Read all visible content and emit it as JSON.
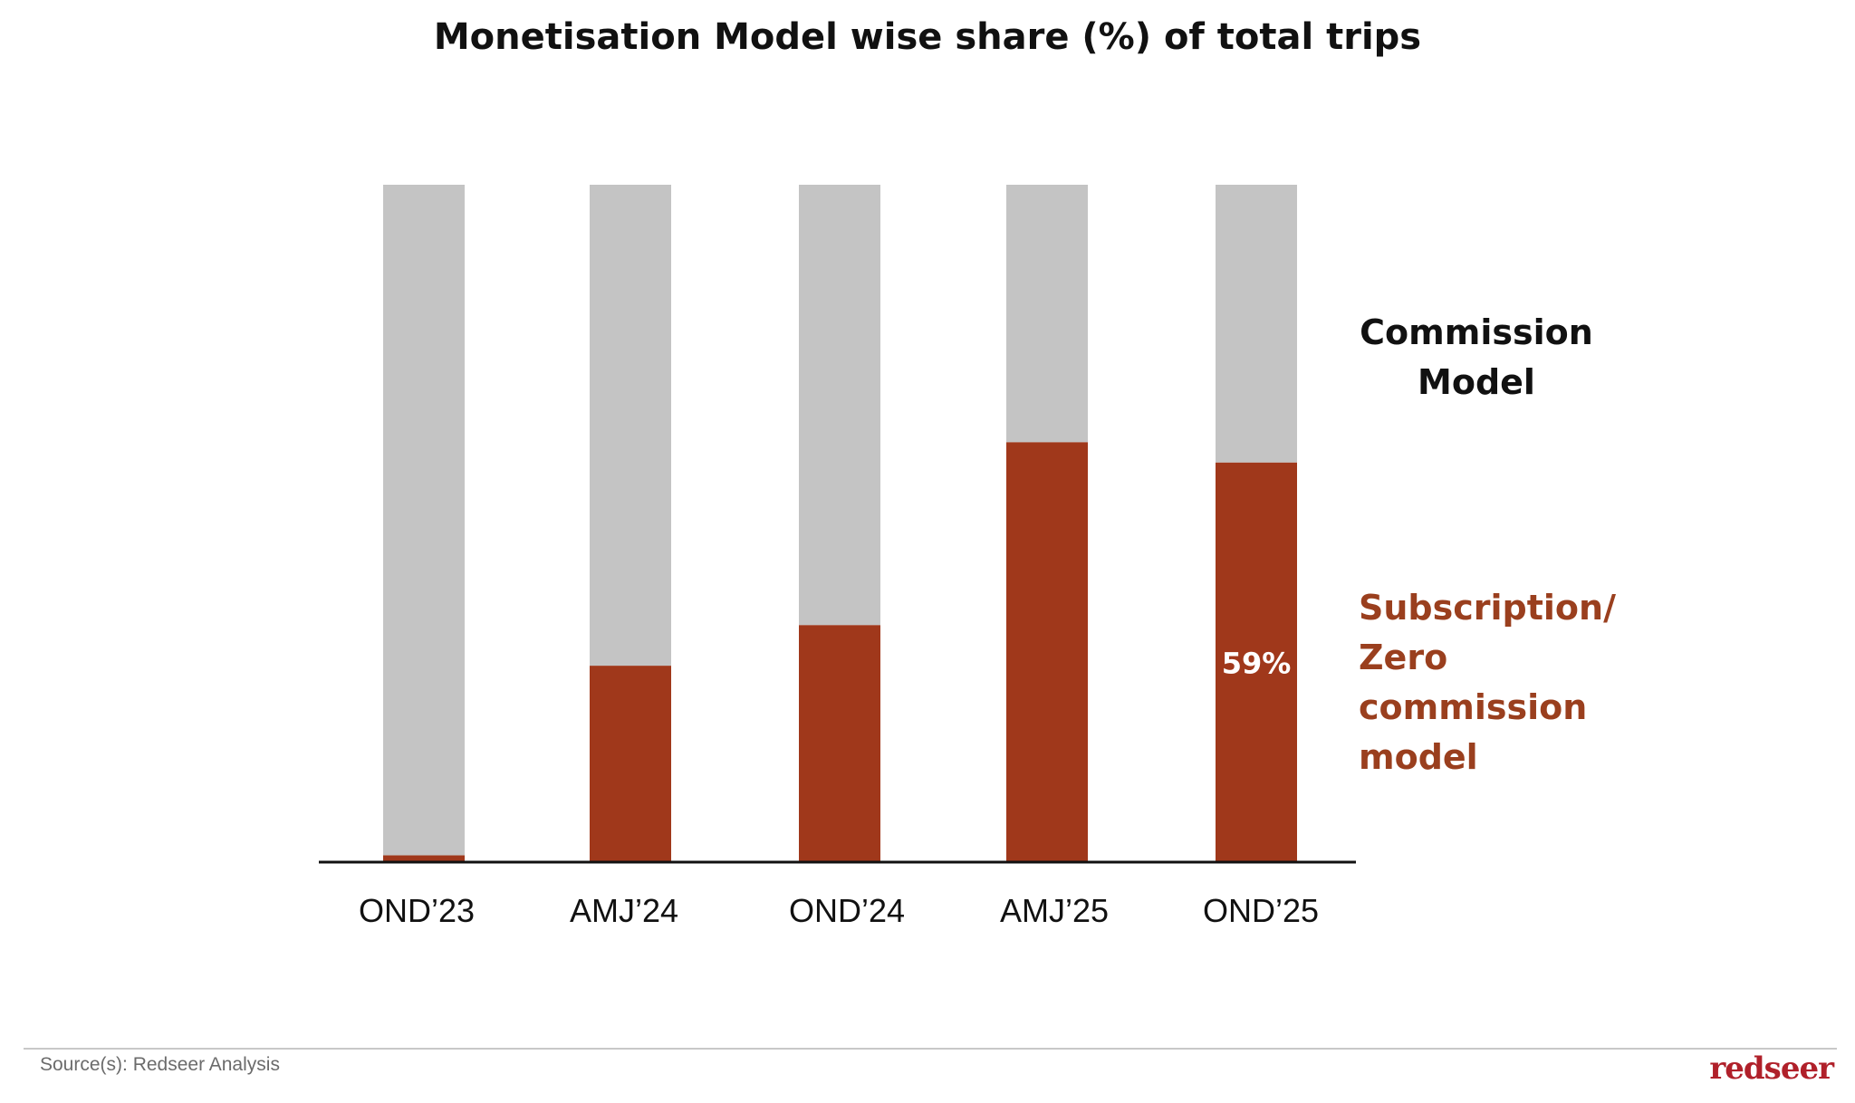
{
  "chart_data": {
    "type": "bar",
    "stacked": true,
    "title": "Monetisation Model wise share (%) of total trips",
    "categories": [
      "OND’23",
      "AMJ’24",
      "OND’24",
      "AMJ’25",
      "OND’25"
    ],
    "series": [
      {
        "name": "Subscription/ Zero commission model",
        "color": "#a0381b",
        "values": [
          1,
          29,
          35,
          62,
          59
        ]
      },
      {
        "name": "Commission Model",
        "color": "#c4c4c4",
        "values": [
          99,
          71,
          65,
          38,
          41
        ]
      }
    ],
    "data_labels": [
      {
        "category": "OND’25",
        "series": "Subscription/ Zero commission model",
        "text": "59%"
      }
    ],
    "ylim": [
      0,
      100
    ],
    "grid": false,
    "legend_placement": "right"
  },
  "legend": {
    "commission_line1": "Commission",
    "commission_line2": "Model",
    "subscription_line1": "Subscription/ Zero",
    "subscription_line2": "commission model"
  },
  "footer": {
    "source": "Source(s): Redseer Analysis",
    "brand": "redseer"
  }
}
